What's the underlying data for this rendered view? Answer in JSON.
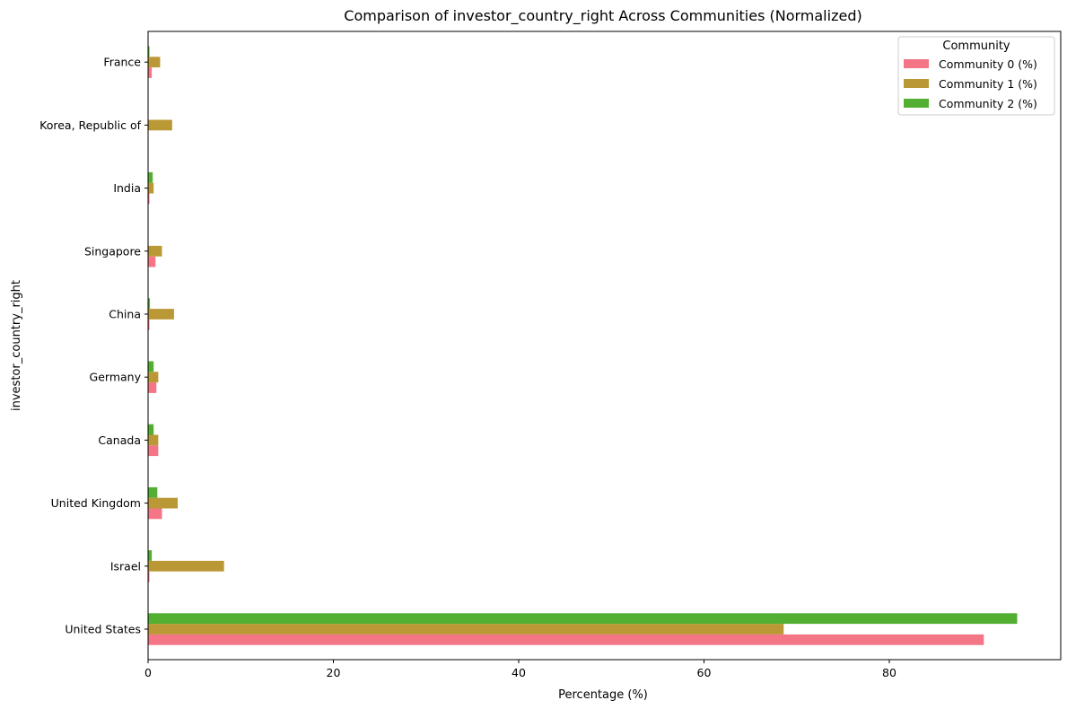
{
  "chart_data": {
    "type": "bar",
    "orientation": "horizontal",
    "title": "Comparison of investor_country_right Across Communities (Normalized)",
    "xlabel": "Percentage (%)",
    "ylabel": "investor_country_right",
    "xlim": [
      0,
      98.5
    ],
    "xticks": [
      0,
      20,
      40,
      60,
      80
    ],
    "categories": [
      "United States",
      "Israel",
      "United Kingdom",
      "Canada",
      "Germany",
      "China",
      "Singapore",
      "India",
      "Korea, Republic of",
      "France"
    ],
    "series": [
      {
        "name": "Community 0 (%)",
        "color": "#f37586",
        "values": [
          90.2,
          0.15,
          1.5,
          1.1,
          0.9,
          0.15,
          0.8,
          0.15,
          0.0,
          0.4
        ]
      },
      {
        "name": "Community 1 (%)",
        "color": "#bb9836",
        "values": [
          68.6,
          8.2,
          3.2,
          1.1,
          1.1,
          2.8,
          1.5,
          0.6,
          2.6,
          1.3
        ]
      },
      {
        "name": "Community 2 (%)",
        "color": "#52af32",
        "values": [
          93.8,
          0.4,
          1.0,
          0.6,
          0.6,
          0.2,
          0.0,
          0.5,
          0.0,
          0.15
        ]
      }
    ],
    "legend": {
      "title": "Community",
      "position": "top-right"
    },
    "grid": false
  }
}
